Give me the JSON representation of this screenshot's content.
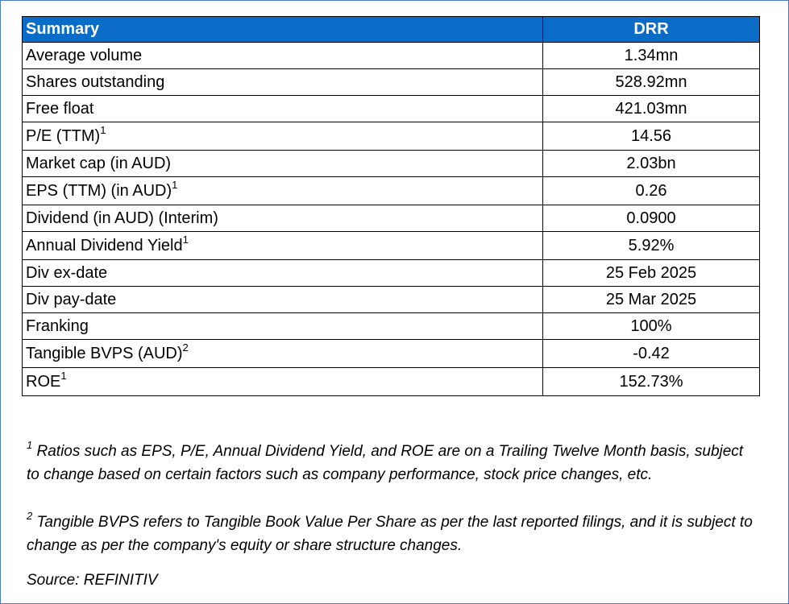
{
  "table": {
    "header": {
      "label": "Summary",
      "value": "DRR"
    },
    "rows": [
      {
        "label": "Average volume",
        "sup": "",
        "value": "1.34mn"
      },
      {
        "label": "Shares outstanding",
        "sup": "",
        "value": "528.92mn"
      },
      {
        "label": "Free float",
        "sup": "",
        "value": "421.03mn"
      },
      {
        "label": "P/E (TTM)",
        "sup": "1",
        "value": "14.56"
      },
      {
        "label": "Market cap (in AUD)",
        "sup": "",
        "value": "2.03bn"
      },
      {
        "label": "EPS (TTM) (in AUD)",
        "sup": "1",
        "value": "0.26"
      },
      {
        "label": "Dividend (in AUD) (Interim)",
        "sup": "",
        "value": "0.0900"
      },
      {
        "label": "Annual Dividend Yield",
        "sup": "1",
        "value": "5.92%"
      },
      {
        "label": "Div ex-date",
        "sup": "",
        "value": "25 Feb 2025"
      },
      {
        "label": "Div pay-date",
        "sup": "",
        "value": "25 Mar 2025"
      },
      {
        "label": "Franking",
        "sup": "",
        "value": "100%"
      },
      {
        "label": "Tangible BVPS (AUD)",
        "sup": "2",
        "value": "-0.42"
      },
      {
        "label": "ROE",
        "sup": "1",
        "value": "152.73%"
      }
    ]
  },
  "notes": [
    {
      "marker": "1",
      "text": "Ratios such as EPS, P/E,  Annual Dividend Yield, and ROE are on a Trailing Twelve Month basis, subject to change based on certain factors such as company performance, stock price changes, etc."
    },
    {
      "marker": "2",
      "text": "Tangible BVPS refers to Tangible Book Value Per Share as per the last reported filings, and it is subject to change as per the company's equity or share structure changes."
    }
  ],
  "source": "Source: REFINITIV",
  "colors": {
    "header_bg": "#0b6cc8",
    "frame_border": "#4a7bc1"
  }
}
